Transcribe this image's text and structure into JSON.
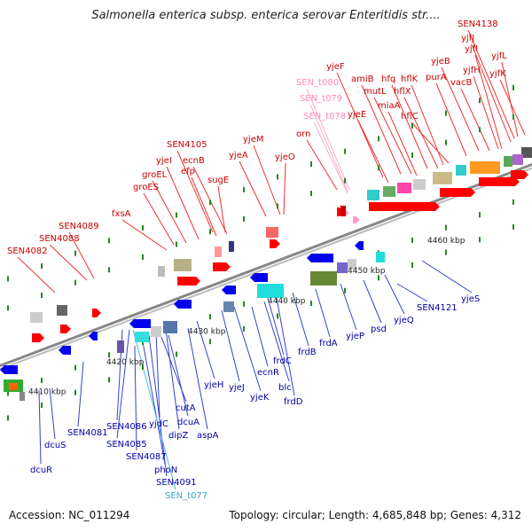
{
  "title": "Salmonella enterica subsp. enterica serovar Enteritidis str....",
  "footer": {
    "accession": "Accession: NC_011294",
    "summary": "Topology: circular; Length: 4,685,848 bp; Genes: 4,312"
  },
  "colors": {
    "forward": "#ff0000",
    "reverse": "#0000ee",
    "trna": "#ff99cc",
    "label_forward": "#cc0000",
    "label_reverse": "#0000aa",
    "label_trna": "#ff88bb",
    "label_cyan": "#33aacc",
    "backbone": "#999999"
  },
  "ticks": [
    "4410 kbp",
    "4420 kbp",
    "4430 kbp",
    "4440 kbp",
    "4450 kbp",
    "4460 kbp"
  ],
  "labels_forward": [
    "SEN4082",
    "SEN4088",
    "SEN4089",
    "fxsA",
    "groES",
    "groEL",
    "yjeI",
    "SEN4105",
    "efp",
    "ecnB",
    "sugE",
    "yjeA",
    "yjeM",
    "yjeO",
    "orn",
    "yjeF",
    "amiB",
    "yjeE",
    "mutL",
    "hfq",
    "miaA",
    "hflX",
    "hflK",
    "hflC",
    "purA",
    "yjeB",
    "vacB",
    "yjfH",
    "yjfI",
    "yjfJ",
    "SEN4138",
    "yjfL",
    "yjfK"
  ],
  "labels_trna": [
    "SEN_t080",
    "SEN_t079",
    "SEN_t078"
  ],
  "labels_reverse": [
    "dcuR",
    "dcuS",
    "SEN4081",
    "SEN4086",
    "SEN4085",
    "SEN4087",
    "phoN",
    "SEN4091",
    "yjdC",
    "dipZ",
    "cutA",
    "dcuA",
    "aspA",
    "yjeH",
    "yjeJ",
    "yjeK",
    "ecnR",
    "blc",
    "frdC",
    "frdD",
    "frdB",
    "frdA",
    "yjeP",
    "psd",
    "yjeQ",
    "SEN4121",
    "yjeS"
  ],
  "labels_cyan": [
    "SEN_t077"
  ]
}
